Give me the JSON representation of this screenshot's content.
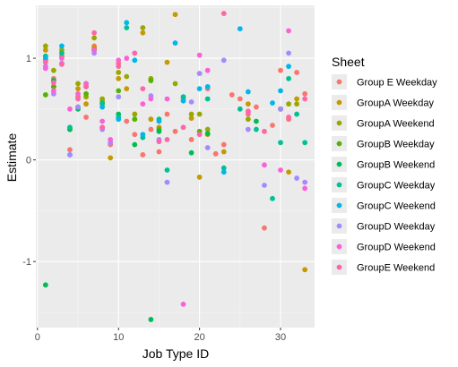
{
  "chart_data": {
    "type": "scatter",
    "title": "",
    "xlabel": "Job Type ID",
    "ylabel": "Estimate",
    "xlim": [
      -0.2,
      34.2
    ],
    "ylim": [
      -1.65,
      1.52
    ],
    "xticks": [
      0,
      10,
      20,
      30
    ],
    "yticks": [
      -1,
      0,
      1
    ],
    "grid": true,
    "background": "#ebebeb",
    "legend": {
      "title": "Sheet",
      "position": "right"
    },
    "series": [
      {
        "name": "Group E Weekday",
        "color": "#F8766D",
        "points": [
          [
            1,
            0.98
          ],
          [
            2,
            0.8
          ],
          [
            4,
            0.1
          ],
          [
            5,
            0.62
          ],
          [
            6,
            0.42
          ],
          [
            7,
            1.12
          ],
          [
            8,
            0.32
          ],
          [
            9,
            0.15
          ],
          [
            10,
            0.95
          ],
          [
            11,
            0.38
          ],
          [
            12,
            0.25
          ],
          [
            13,
            0.05
          ],
          [
            14,
            0.3
          ],
          [
            15,
            0.08
          ],
          [
            16,
            0.45
          ],
          [
            17,
            0.28
          ],
          [
            18,
            0.6
          ],
          [
            19,
            0.2
          ],
          [
            20,
            0.85
          ],
          [
            21,
            0.7
          ],
          [
            22,
            0.06
          ],
          [
            23,
            0.15
          ],
          [
            24,
            0.64
          ],
          [
            25,
            0.6
          ],
          [
            26,
            0.45
          ],
          [
            27,
            0.52
          ],
          [
            28,
            -0.67
          ],
          [
            29,
            0.34
          ],
          [
            30,
            0.88
          ],
          [
            31,
            0.4
          ],
          [
            32,
            0.86
          ],
          [
            33,
            0.65
          ]
        ]
      },
      {
        "name": "GroupA Weekday",
        "color": "#C49A00",
        "points": [
          [
            1,
            1.08
          ],
          [
            2,
            0.72
          ],
          [
            3,
            1.02
          ],
          [
            5,
            0.7
          ],
          [
            6,
            0.55
          ],
          [
            7,
            1.1
          ],
          [
            8,
            0.58
          ],
          [
            9,
            0.02
          ],
          [
            10,
            0.8
          ],
          [
            11,
            0.7
          ],
          [
            12,
            0.45
          ],
          [
            13,
            1.25
          ],
          [
            14,
            0.4
          ],
          [
            15,
            0.32
          ],
          [
            16,
            0.96
          ],
          [
            17,
            1.43
          ],
          [
            19,
            0.41
          ],
          [
            20,
            -0.17
          ],
          [
            21,
            0.25
          ],
          [
            23,
            0.08
          ],
          [
            26,
            0.55
          ],
          [
            31,
            -0.12
          ],
          [
            32,
            0.6
          ],
          [
            33,
            -1.08
          ]
        ]
      },
      {
        "name": "GroupA Weekend",
        "color": "#99A800",
        "points": [
          [
            1,
            1.12
          ],
          [
            2,
            0.88
          ],
          [
            3,
            1.08
          ],
          [
            5,
            0.75
          ],
          [
            6,
            0.62
          ],
          [
            7,
            1.2
          ],
          [
            8,
            0.6
          ],
          [
            10,
            0.86
          ],
          [
            11,
            0.82
          ],
          [
            12,
            0.45
          ],
          [
            13,
            1.3
          ],
          [
            14,
            0.8
          ],
          [
            17,
            0.75
          ],
          [
            19,
            0.45
          ],
          [
            20,
            0.45
          ],
          [
            21,
            0.3
          ],
          [
            26,
            0.4
          ],
          [
            30,
            0.5
          ],
          [
            31,
            0.55
          ],
          [
            32,
            0.55
          ]
        ]
      },
      {
        "name": "GroupB Weekday",
        "color": "#53B400",
        "points": [
          [
            1,
            0.64
          ],
          [
            2,
            0.72
          ],
          [
            4,
            0.3
          ],
          [
            5,
            0.52
          ],
          [
            6,
            0.65
          ],
          [
            7,
            1.08
          ],
          [
            8,
            0.55
          ],
          [
            10,
            0.68
          ],
          [
            12,
            0.4
          ],
          [
            14,
            0.78
          ],
          [
            15,
            0.3
          ],
          [
            20,
            0.28
          ],
          [
            30,
            0.5
          ]
        ]
      },
      {
        "name": "GroupB Weekend",
        "color": "#00BC56",
        "points": [
          [
            1,
            -1.23
          ],
          [
            2,
            0.78
          ],
          [
            4,
            0.3
          ],
          [
            5,
            0.5
          ],
          [
            7,
            1.08
          ],
          [
            10,
            0.45
          ],
          [
            12,
            0.15
          ],
          [
            14,
            -1.57
          ],
          [
            15,
            0.28
          ],
          [
            19,
            0.07
          ],
          [
            21,
            0.26
          ],
          [
            27,
            0.38
          ]
        ]
      },
      {
        "name": "GroupC Weekday",
        "color": "#00C094",
        "points": [
          [
            1,
            1.02
          ],
          [
            3,
            1.05
          ],
          [
            4,
            0.32
          ],
          [
            6,
            0.72
          ],
          [
            8,
            0.56
          ],
          [
            10,
            0.42
          ],
          [
            11,
            1.3
          ],
          [
            13,
            0.22
          ],
          [
            15,
            0.4
          ],
          [
            16,
            -0.1
          ],
          [
            18,
            0.62
          ],
          [
            21,
            0.6
          ],
          [
            23,
            -0.08
          ],
          [
            25,
            0.5
          ],
          [
            27,
            0.3
          ],
          [
            29,
            -0.38
          ],
          [
            30,
            0.17
          ],
          [
            31,
            0.8
          ],
          [
            32,
            0.45
          ],
          [
            33,
            0.17
          ]
        ]
      },
      {
        "name": "GroupC Weekend",
        "color": "#00B6EB",
        "points": [
          [
            1,
            1.0
          ],
          [
            3,
            1.12
          ],
          [
            4,
            0.05
          ],
          [
            6,
            0.75
          ],
          [
            8,
            0.52
          ],
          [
            10,
            0.4
          ],
          [
            11,
            1.35
          ],
          [
            12,
            0.98
          ],
          [
            13,
            0.25
          ],
          [
            15,
            0.38
          ],
          [
            17,
            1.15
          ],
          [
            18,
            0.58
          ],
          [
            20,
            0.7
          ],
          [
            21,
            0.72
          ],
          [
            23,
            -0.12
          ],
          [
            25,
            1.29
          ],
          [
            26,
            0.67
          ],
          [
            29,
            0.56
          ],
          [
            30,
            0.68
          ],
          [
            31,
            0.92
          ]
        ]
      },
      {
        "name": "GroupD Weekday",
        "color": "#A58AFF",
        "points": [
          [
            1,
            0.92
          ],
          [
            2,
            0.65
          ],
          [
            3,
            0.95
          ],
          [
            4,
            0.05
          ],
          [
            5,
            0.52
          ],
          [
            7,
            1.05
          ],
          [
            8,
            0.3
          ],
          [
            9,
            0.17
          ],
          [
            10,
            0.62
          ],
          [
            12,
            1.05
          ],
          [
            14,
            0.63
          ],
          [
            15,
            0.2
          ],
          [
            16,
            -0.22
          ],
          [
            19,
            0.57
          ],
          [
            20,
            0.85
          ],
          [
            21,
            0.12
          ],
          [
            23,
            0.98
          ],
          [
            26,
            0.3
          ],
          [
            28,
            -0.25
          ],
          [
            30,
            0.5
          ],
          [
            31,
            1.05
          ],
          [
            32,
            -0.18
          ],
          [
            33,
            -0.22
          ]
        ]
      },
      {
        "name": "GroupD Weekend",
        "color": "#FB61D7",
        "points": [
          [
            1,
            0.9
          ],
          [
            2,
            0.68
          ],
          [
            3,
            1.0
          ],
          [
            4,
            0.5
          ],
          [
            5,
            0.65
          ],
          [
            6,
            0.75
          ],
          [
            7,
            1.08
          ],
          [
            8,
            0.38
          ],
          [
            9,
            0.2
          ],
          [
            10,
            0.98
          ],
          [
            11,
            1.0
          ],
          [
            13,
            0.55
          ],
          [
            14,
            0.6
          ],
          [
            16,
            0.6
          ],
          [
            18,
            -1.42
          ],
          [
            20,
            1.03
          ],
          [
            21,
            0.88
          ],
          [
            26,
            0.47
          ],
          [
            28,
            -0.05
          ],
          [
            30,
            -0.1
          ],
          [
            31,
            1.27
          ],
          [
            33,
            -0.28
          ]
        ]
      },
      {
        "name": "GroupE Weekend",
        "color": "#FF66A8",
        "points": [
          [
            1,
            0.96
          ],
          [
            2,
            0.76
          ],
          [
            3,
            0.94
          ],
          [
            5,
            0.6
          ],
          [
            6,
            0.72
          ],
          [
            7,
            1.25
          ],
          [
            8,
            0.32
          ],
          [
            10,
            0.92
          ],
          [
            12,
            1.05
          ],
          [
            13,
            0.7
          ],
          [
            15,
            0.18
          ],
          [
            16,
            0.2
          ],
          [
            18,
            0.32
          ],
          [
            20,
            0.25
          ],
          [
            23,
            1.44
          ],
          [
            26,
            0.48
          ],
          [
            28,
            0.28
          ],
          [
            31,
            0.42
          ],
          [
            33,
            0.6
          ]
        ]
      }
    ]
  }
}
